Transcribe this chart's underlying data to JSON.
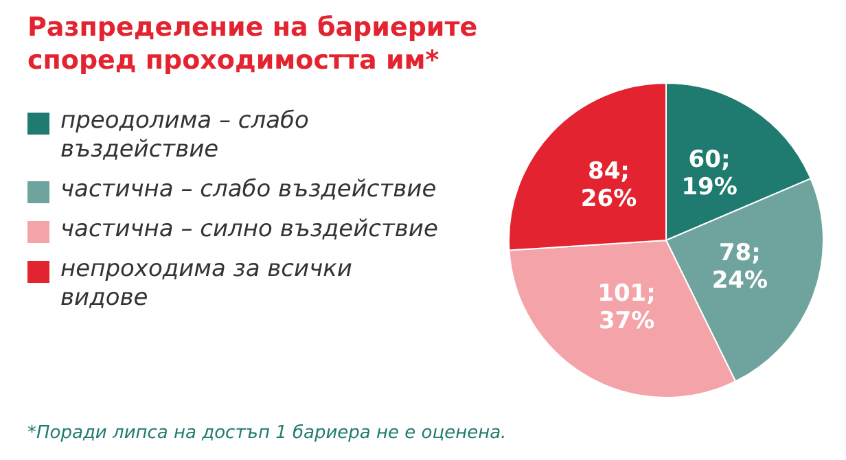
{
  "chart_data": {
    "type": "pie",
    "title": "Разпределение на бариерите според проходимостта им*",
    "categories": [
      "преодолима – слабо въздействие",
      "частична – слабо въздействие",
      "частична – силно въздействие",
      "непроходима за всички видове"
    ],
    "values": [
      60,
      78,
      101,
      84
    ],
    "colors": [
      "#1f7b6f",
      "#6ea49d",
      "#f4a4a9",
      "#e3232f"
    ],
    "value_labels": [
      "60;\n19%",
      "78;\n24%",
      "101;\n37%",
      "84;\n26%"
    ],
    "legend": "left",
    "annotations": [
      "*Поради липса на достъп 1 бариера не е оценена."
    ]
  }
}
